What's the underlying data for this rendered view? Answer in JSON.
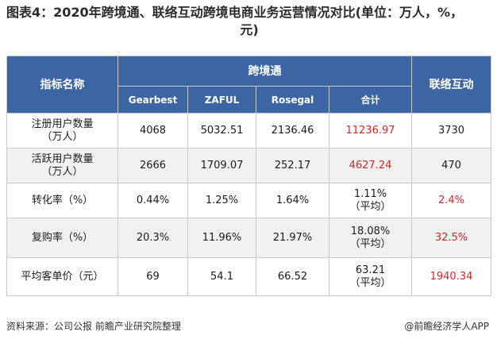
{
  "title": {
    "line1": "图表4：2020年跨境通、联络互动跨境电商业务运营情况对比(单位：万人，%，",
    "line2": "元)"
  },
  "table": {
    "header_metric": "指标名称",
    "header_group": "跨境通",
    "header_last": "联络互动",
    "sub_headers": [
      "Gearbest",
      "ZAFUL",
      "Rosegal",
      "合计"
    ],
    "rows": [
      {
        "label": "注册用户数量\n（万人）",
        "cells": [
          "4068",
          "5032.51",
          "2136.46",
          "11236.97",
          "3730"
        ]
      },
      {
        "label": "活跃用户数量\n（万人）",
        "cells": [
          "2666",
          "1709.07",
          "252.17",
          "4627.24",
          "470"
        ]
      },
      {
        "label": "转化率（%）",
        "cells": [
          "0.44%",
          "1.25%",
          "1.64%",
          "1.11%\n（平均）",
          "2.4%"
        ]
      },
      {
        "label": "复购率（%）",
        "cells": [
          "20.3%",
          "11.96%",
          "21.97%",
          "18.08%\n（平均）",
          "32.5%"
        ]
      },
      {
        "label": "平均客单价（元）",
        "cells": [
          "69",
          "54.1",
          "66.52",
          "63.21\n（平均）",
          "1940.34"
        ]
      }
    ],
    "red_color": "#d62728",
    "header_color": "#3b66a3"
  },
  "footer": {
    "source": "资料来源：公司公报 前瞻产业研究院整理",
    "brand": "@前瞻经济学人APP"
  }
}
